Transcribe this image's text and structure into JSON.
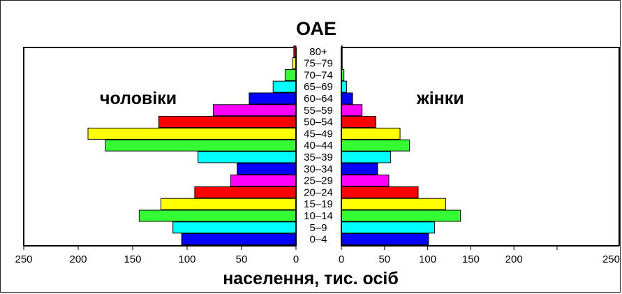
{
  "chart_data": {
    "type": "bar",
    "title": "ОАЕ",
    "xlabel": "населення, тис. осіб",
    "left_label": "чоловіки",
    "right_label": "жінки",
    "x_ticks_left": [
      "250",
      "200",
      "150",
      "100",
      "50",
      "0"
    ],
    "x_ticks_right": [
      "0",
      "50",
      "100",
      "150",
      "200",
      "250"
    ],
    "xlim": [
      0,
      250
    ],
    "categories": [
      "0–4",
      "5–9",
      "10–14",
      "15–19",
      "20–24",
      "25–29",
      "30–34",
      "35–39",
      "40–44",
      "45–49",
      "50–54",
      "55–59",
      "60–64",
      "65–69",
      "70–74",
      "75–79",
      "80+"
    ],
    "colors": [
      "#0000ff",
      "#00ffff",
      "#33ff33",
      "#ffff00",
      "#ff0000",
      "#ff00ff",
      "#0000ff",
      "#00ffff",
      "#33ff33",
      "#ffff00",
      "#ff0000",
      "#ff00ff",
      "#0000ff",
      "#00ffff",
      "#33ff33",
      "#ffff00",
      "#ff0000"
    ],
    "series": [
      {
        "name": "чоловіки",
        "values": [
          105,
          113,
          144,
          124,
          93,
          60,
          54,
          90,
          175,
          191,
          126,
          76,
          43,
          21,
          10,
          3,
          2
        ]
      },
      {
        "name": "жінки",
        "values": [
          101,
          108,
          138,
          121,
          89,
          55,
          42,
          57,
          79,
          68,
          40,
          24,
          13,
          6,
          3,
          1,
          1
        ]
      }
    ]
  }
}
